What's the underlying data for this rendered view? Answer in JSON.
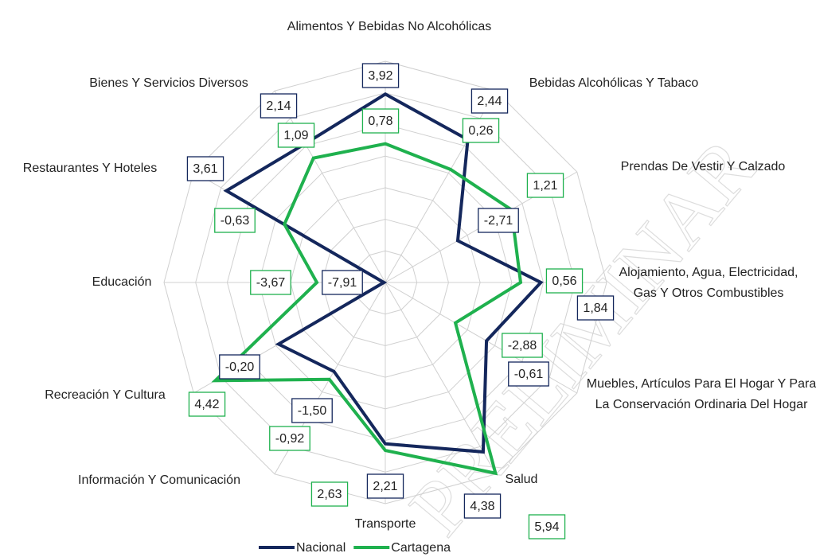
{
  "chart_data": {
    "type": "radar",
    "categories": [
      "Alimentos Y Bebidas No Alcohólicas",
      "Bebidas Alcohólicas Y Tabaco",
      "Prendas De Vestir Y Calzado",
      "Alojamiento, Agua, Electricidad, Gas Y Otros Combustibles",
      "Muebles, Artículos Para El Hogar Y Para La Conservación Ordinaria Del Hogar",
      "Salud",
      "Transporte",
      "Información Y Comunicación",
      "Recreación Y Cultura",
      "Educación",
      "Restaurantes Y Hoteles",
      "Bienes Y Servicios Diversos"
    ],
    "series": [
      {
        "name": "Nacional",
        "color": "#14275c",
        "values": [
          3.92,
          2.44,
          -2.71,
          1.84,
          -0.61,
          4.38,
          2.21,
          -1.5,
          -0.2,
          -7.91,
          3.61,
          2.14
        ],
        "value_labels": [
          "3,92",
          "2,44",
          "-2,71",
          "1,84",
          "-0,61",
          "4,38",
          "2,21",
          "-1,50",
          "-0,20",
          "-7,91",
          "3,61",
          "2,14"
        ]
      },
      {
        "name": "Cartagena",
        "color": "#1fb14e",
        "values": [
          0.78,
          0.26,
          1.21,
          0.56,
          -2.88,
          5.94,
          2.63,
          -0.92,
          4.42,
          -3.67,
          -0.63,
          1.09
        ],
        "value_labels": [
          "0,78",
          "0,26",
          "1,21",
          "0,56",
          "-2,88",
          "5,94",
          "2,63",
          "-0,92",
          "4,42",
          "-3,67",
          "-0,63",
          "1,09"
        ]
      }
    ],
    "ylim": [
      -8,
      6
    ],
    "yticks": [
      -8,
      -6,
      -4,
      -2,
      0,
      2,
      4,
      6
    ],
    "grid": true,
    "legend": "bottom",
    "watermark": "PRELIMINAR"
  }
}
